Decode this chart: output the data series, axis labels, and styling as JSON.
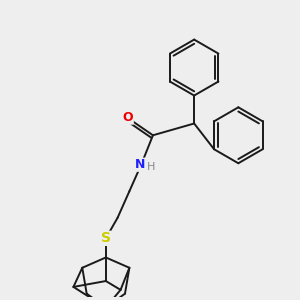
{
  "bg_color": "#eeeeee",
  "bond_color": "#1a1a1a",
  "N_color": "#2020ff",
  "O_color": "#ee0000",
  "S_color": "#cccc00",
  "H_color": "#888888",
  "line_width": 1.4,
  "figsize": [
    3.0,
    3.0
  ],
  "dpi": 100,
  "xlim": [
    0,
    10
  ],
  "ylim": [
    0,
    10
  ]
}
